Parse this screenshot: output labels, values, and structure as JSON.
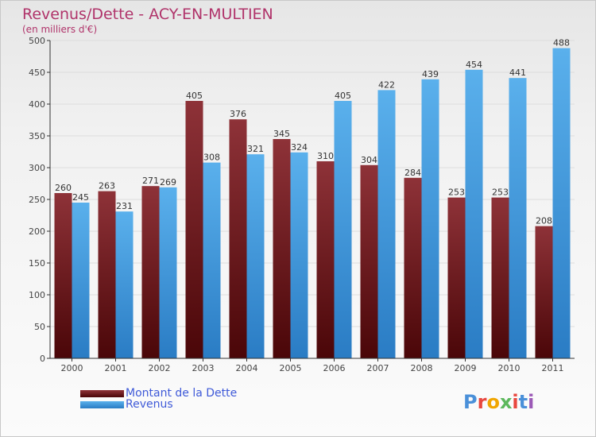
{
  "header": {
    "title": "Revenus/Dette - ACY-EN-MULTIEN",
    "subtitle": "(en milliers d'€)"
  },
  "logo": {
    "text": "Proxiti",
    "colors": [
      "#4a90d9",
      "#e8473f",
      "#f0a500",
      "#5cb85c",
      "#e8473f",
      "#4a90d9",
      "#9b59b6"
    ]
  },
  "colors": {
    "dette": "#7a1e26",
    "revenus": "#3b8fd6",
    "title": "#b0336a",
    "legend_text": "#3f5ad8"
  },
  "chart_data": {
    "type": "bar",
    "title": "Revenus/Dette - ACY-EN-MULTIEN",
    "subtitle": "(en milliers d'€)",
    "categories": [
      "2000",
      "2001",
      "2002",
      "2003",
      "2004",
      "2005",
      "2006",
      "2007",
      "2008",
      "2009",
      "2010",
      "2011"
    ],
    "series": [
      {
        "name": "Montant de la Dette",
        "values": [
          260,
          263,
          271,
          405,
          376,
          345,
          310,
          304,
          284,
          253,
          253,
          208
        ]
      },
      {
        "name": "Revenus",
        "values": [
          245,
          231,
          269,
          308,
          321,
          324,
          405,
          422,
          439,
          454,
          441,
          488
        ]
      }
    ],
    "ylim": [
      0,
      500
    ],
    "yticks": [
      0,
      50,
      100,
      150,
      200,
      250,
      300,
      350,
      400,
      450,
      500
    ],
    "grid": true,
    "legend": "bottom-left"
  }
}
